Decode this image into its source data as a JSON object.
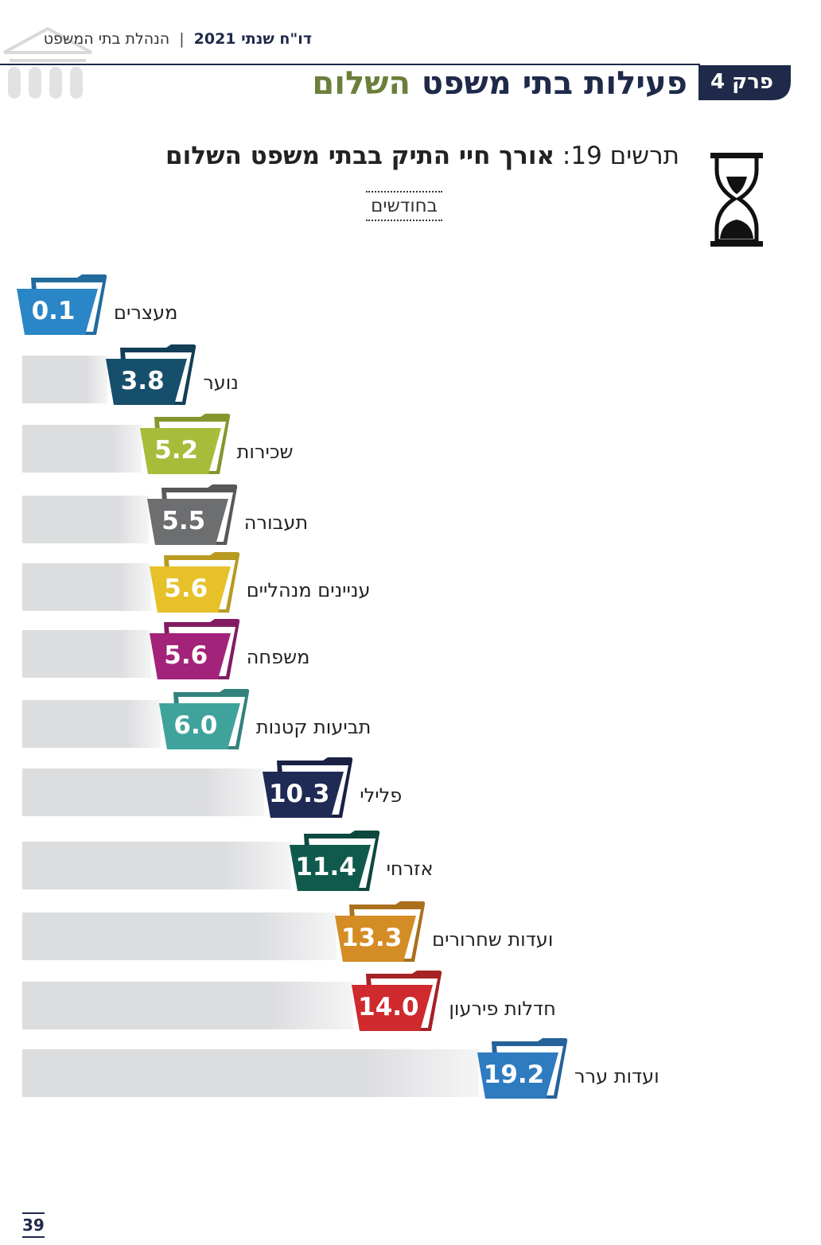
{
  "header": {
    "report": "דו\"ח שנתי 2021",
    "org": "הנהלת בתי המשפט",
    "separator": "|"
  },
  "chapter": {
    "badge": "פרק 4",
    "title_main": "פעילות בתי משפט",
    "title_accent": "השלום"
  },
  "chart_header": {
    "figure_label": "תרשים 19:",
    "title": "אורך חיי התיק בבתי משפט השלום",
    "subtitle": "בחודשים"
  },
  "page_number": "39",
  "colors": {
    "navy": "#1f2a4a",
    "accent_green": "#6b7f3a",
    "track": "#dcdddf"
  },
  "icons": {
    "logo": "court-building-icon",
    "hourglass": "hourglass-icon",
    "folder": "folder-icon"
  },
  "chart_data": {
    "type": "bar",
    "orientation": "horizontal",
    "title": "אורך חיי התיק בבתי משפט השלום",
    "subtitle": "בחודשים",
    "categories": [
      "מעצרים",
      "נוער",
      "שכירות",
      "תעבורה",
      "עניינים מנהליים",
      "משפחה",
      "תביעות קטנות",
      "פלילי",
      "אזרחי",
      "ועדות שחרורים",
      "חדלות פירעון",
      "ועדות ערר"
    ],
    "values": [
      0.1,
      3.8,
      5.2,
      5.5,
      5.6,
      5.6,
      6.0,
      10.3,
      11.4,
      13.3,
      14.0,
      19.2
    ],
    "labels": [
      "0.1",
      "3.8",
      "5.2",
      "5.5",
      "5.6",
      "5.6",
      "6.0",
      "10.3",
      "11.4",
      "13.3",
      "14.0",
      "19.2"
    ],
    "colors": [
      "#2a86c7",
      "#164f6b",
      "#a8bc3b",
      "#6d6e70",
      "#e6c12a",
      "#a3237a",
      "#3fa39c",
      "#1f2a55",
      "#0f5a4c",
      "#d48c25",
      "#cf2a2e",
      "#2e7bc0"
    ],
    "xlim": [
      0,
      19.2
    ],
    "grid": false,
    "legend": "none"
  }
}
